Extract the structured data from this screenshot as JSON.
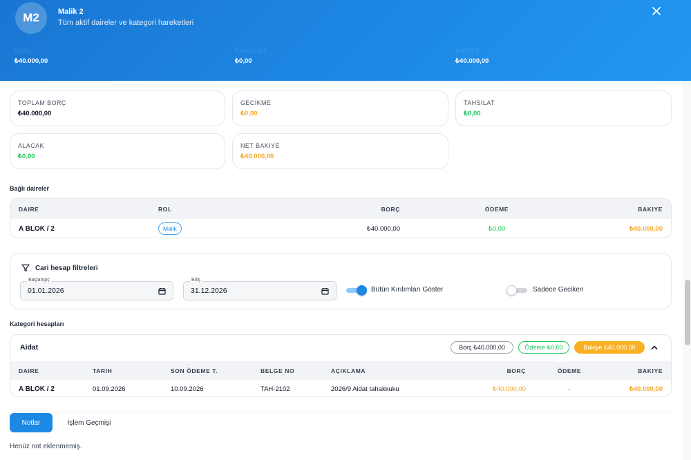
{
  "header": {
    "avatar": "M2",
    "title": "Malik 2",
    "subtitle": "Tüm aktif daireler ve kategori hareketleri",
    "stats": [
      {
        "label": "BORÇ",
        "value": "₺40.000,00"
      },
      {
        "label": "TAHSİLAT",
        "value": "₺0,00"
      },
      {
        "label": "BAKİYE",
        "value": "₺40.000,00"
      }
    ]
  },
  "summary": [
    {
      "label": "TOPLAM BORÇ",
      "value": "₺40.000,00",
      "color": "#111827"
    },
    {
      "label": "GECİKME",
      "value": "₺0,00",
      "color": "#f9a825"
    },
    {
      "label": "TAHSILAT",
      "value": "₺0,00",
      "color": "#22c55e"
    },
    {
      "label": "ALACAK",
      "value": "₺0,00",
      "color": "#22c55e"
    },
    {
      "label": "NET BAKIYE",
      "value": "₺40.000,00",
      "color": "#f9a825"
    }
  ],
  "linked": {
    "title": "Bağlı daireler",
    "columns": [
      "DAIRE",
      "ROL",
      "BORÇ",
      "ÖDEME",
      "BAKIYE"
    ],
    "rows": [
      {
        "daire": "A BLOK / 2",
        "rol": "Malik",
        "borc": "₺40.000,00",
        "odeme": "₺0,00",
        "bakiye": "₺40.000,00"
      }
    ]
  },
  "filters": {
    "title": "Cari hesap filtreleri",
    "start_label": "Başlangıç",
    "start_value": "01.01.2026",
    "end_label": "Bitiş",
    "end_value": "31.12.2026",
    "toggle_all_label": "Bütün Kırılımları Göster",
    "toggle_all_on": true,
    "toggle_late_label": "Sadece Geciken",
    "toggle_late_on": false
  },
  "categories": {
    "title": "Kategori hesapları",
    "accordion": {
      "name": "Aidat",
      "chips": {
        "borc": "Borç ₺40.000,00",
        "odeme": "Ödeme ₺0,00",
        "bakiye": "Bakiye ₺40.000,00"
      },
      "columns": [
        "DAIRE",
        "TARIH",
        "SON ÖDEME T.",
        "BELGE NO",
        "AÇIKLAMA",
        "BORÇ",
        "ÖDEME",
        "BAKIYE"
      ],
      "rows": [
        {
          "daire": "A BLOK / 2",
          "tarih": "01.09.2026",
          "son_odeme": "10.09.2026",
          "belge_no": "TAH-2102",
          "aciklama": "2026/9 Aidat tahakkuku",
          "borc": "₺40.000,00",
          "odeme": "-",
          "bakiye": "₺40.000,00"
        }
      ]
    }
  },
  "tabs": {
    "notes": "Notlar",
    "history": "İşlem Geçmişi"
  },
  "notes_empty": "Henüz not eklenmemiş.",
  "colors": {
    "primary": "#1e88e5",
    "warning": "#f9a825",
    "success": "#22c55e"
  }
}
